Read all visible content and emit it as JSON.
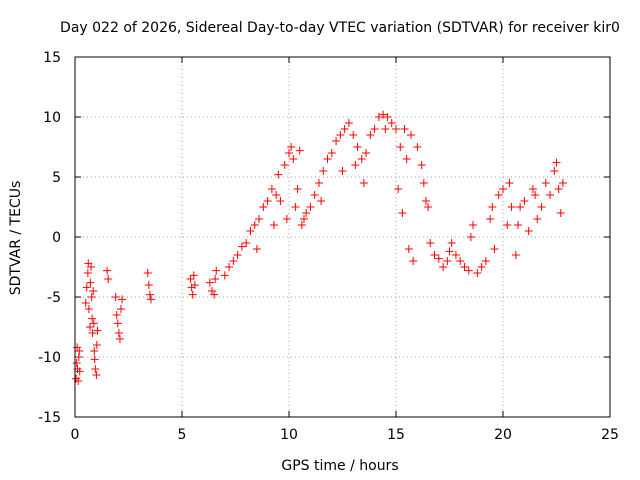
{
  "chart_data": {
    "type": "scatter",
    "title": "Day 022 of 2026, Sidereal Day-to-day VTEC variation (SDTVAR) for receiver kir0",
    "xlabel": "GPS time / hours",
    "ylabel": "SDTVAR / TECUs",
    "xlim": [
      0,
      25
    ],
    "ylim": [
      -15,
      15
    ],
    "xticks": [
      "0",
      "5",
      "10",
      "15",
      "20",
      "25"
    ],
    "yticks": [
      "-15",
      "-10",
      "-5",
      "0",
      "5",
      "10",
      "15"
    ],
    "grid": true,
    "marker": "+",
    "color": "#ff0000",
    "series": [
      {
        "name": "SDTVAR",
        "points": [
          [
            0.05,
            -11.8
          ],
          [
            0.08,
            -10.5
          ],
          [
            0.1,
            -9.2
          ],
          [
            0.12,
            -11.0
          ],
          [
            0.15,
            -12.0
          ],
          [
            0.18,
            -10.0
          ],
          [
            0.2,
            -9.5
          ],
          [
            0.22,
            -11.2
          ],
          [
            0.5,
            -5.5
          ],
          [
            0.55,
            -4.2
          ],
          [
            0.6,
            -3.0
          ],
          [
            0.62,
            -2.2
          ],
          [
            0.65,
            -6.0
          ],
          [
            0.7,
            -7.5
          ],
          [
            0.72,
            -3.8
          ],
          [
            0.75,
            -2.5
          ],
          [
            0.78,
            -5.0
          ],
          [
            0.8,
            -6.8
          ],
          [
            0.82,
            -8.0
          ],
          [
            0.85,
            -4.5
          ],
          [
            0.88,
            -7.2
          ],
          [
            0.9,
            -9.5
          ],
          [
            0.92,
            -10.2
          ],
          [
            0.95,
            -11.0
          ],
          [
            1.0,
            -11.5
          ],
          [
            1.02,
            -9.0
          ],
          [
            1.05,
            -7.8
          ],
          [
            1.5,
            -2.8
          ],
          [
            1.55,
            -3.5
          ],
          [
            1.9,
            -5.0
          ],
          [
            1.95,
            -6.5
          ],
          [
            2.0,
            -7.2
          ],
          [
            2.05,
            -8.0
          ],
          [
            2.1,
            -8.5
          ],
          [
            2.15,
            -6.0
          ],
          [
            2.2,
            -5.2
          ],
          [
            3.4,
            -3.0
          ],
          [
            3.45,
            -4.0
          ],
          [
            3.5,
            -4.8
          ],
          [
            3.55,
            -5.2
          ],
          [
            5.4,
            -3.5
          ],
          [
            5.45,
            -4.2
          ],
          [
            5.5,
            -4.8
          ],
          [
            5.55,
            -3.2
          ],
          [
            5.6,
            -4.0
          ],
          [
            6.3,
            -3.8
          ],
          [
            6.4,
            -4.5
          ],
          [
            6.5,
            -4.8
          ],
          [
            6.55,
            -3.5
          ],
          [
            6.6,
            -2.8
          ],
          [
            7.0,
            -3.2
          ],
          [
            7.2,
            -2.5
          ],
          [
            7.4,
            -2.0
          ],
          [
            7.6,
            -1.5
          ],
          [
            7.8,
            -0.8
          ],
          [
            8.0,
            -0.5
          ],
          [
            8.2,
            0.5
          ],
          [
            8.4,
            1.0
          ],
          [
            8.5,
            -1.0
          ],
          [
            8.6,
            1.5
          ],
          [
            8.8,
            2.5
          ],
          [
            9.0,
            3.0
          ],
          [
            9.2,
            4.0
          ],
          [
            9.3,
            1.0
          ],
          [
            9.4,
            3.5
          ],
          [
            9.5,
            5.2
          ],
          [
            9.6,
            3.0
          ],
          [
            9.8,
            6.0
          ],
          [
            9.9,
            1.5
          ],
          [
            10.0,
            7.0
          ],
          [
            10.1,
            7.5
          ],
          [
            10.2,
            6.5
          ],
          [
            10.3,
            2.5
          ],
          [
            10.4,
            4.0
          ],
          [
            10.5,
            7.2
          ],
          [
            10.6,
            1.0
          ],
          [
            10.7,
            1.5
          ],
          [
            10.8,
            2.0
          ],
          [
            11.0,
            2.5
          ],
          [
            11.2,
            3.5
          ],
          [
            11.4,
            4.5
          ],
          [
            11.5,
            3.0
          ],
          [
            11.6,
            5.5
          ],
          [
            11.8,
            6.5
          ],
          [
            12.0,
            7.0
          ],
          [
            12.2,
            8.0
          ],
          [
            12.4,
            8.5
          ],
          [
            12.5,
            5.5
          ],
          [
            12.6,
            9.0
          ],
          [
            12.8,
            9.5
          ],
          [
            13.0,
            8.5
          ],
          [
            13.1,
            6.0
          ],
          [
            13.2,
            7.5
          ],
          [
            13.4,
            6.5
          ],
          [
            13.5,
            4.5
          ],
          [
            13.6,
            7.0
          ],
          [
            13.8,
            8.5
          ],
          [
            14.0,
            9.0
          ],
          [
            14.2,
            10.0
          ],
          [
            14.4,
            10.2
          ],
          [
            14.5,
            9.0
          ],
          [
            14.6,
            10.0
          ],
          [
            14.8,
            9.5
          ],
          [
            15.0,
            9.0
          ],
          [
            15.1,
            4.0
          ],
          [
            15.2,
            7.5
          ],
          [
            15.3,
            2.0
          ],
          [
            15.4,
            9.0
          ],
          [
            15.5,
            6.5
          ],
          [
            15.6,
            -1.0
          ],
          [
            15.7,
            8.5
          ],
          [
            15.8,
            -2.0
          ],
          [
            16.0,
            7.5
          ],
          [
            16.2,
            6.0
          ],
          [
            16.3,
            4.5
          ],
          [
            16.4,
            3.0
          ],
          [
            16.5,
            2.5
          ],
          [
            16.6,
            -0.5
          ],
          [
            16.8,
            -1.5
          ],
          [
            17.0,
            -1.8
          ],
          [
            17.2,
            -2.5
          ],
          [
            17.4,
            -2.0
          ],
          [
            17.5,
            -1.2
          ],
          [
            17.6,
            -0.5
          ],
          [
            17.8,
            -1.5
          ],
          [
            18.0,
            -2.0
          ],
          [
            18.2,
            -2.5
          ],
          [
            18.4,
            -2.8
          ],
          [
            18.5,
            0.0
          ],
          [
            18.6,
            1.0
          ],
          [
            18.8,
            -3.0
          ],
          [
            19.0,
            -2.5
          ],
          [
            19.2,
            -2.0
          ],
          [
            19.4,
            1.5
          ],
          [
            19.5,
            2.5
          ],
          [
            19.6,
            -1.0
          ],
          [
            19.8,
            3.5
          ],
          [
            20.0,
            4.0
          ],
          [
            20.2,
            1.0
          ],
          [
            20.3,
            4.5
          ],
          [
            20.4,
            2.5
          ],
          [
            20.6,
            -1.5
          ],
          [
            20.7,
            1.0
          ],
          [
            20.8,
            2.5
          ],
          [
            21.0,
            3.0
          ],
          [
            21.2,
            0.5
          ],
          [
            21.4,
            4.0
          ],
          [
            21.5,
            3.5
          ],
          [
            21.6,
            1.5
          ],
          [
            21.8,
            2.5
          ],
          [
            22.0,
            4.5
          ],
          [
            22.2,
            3.5
          ],
          [
            22.4,
            5.5
          ],
          [
            22.5,
            6.2
          ],
          [
            22.6,
            4.0
          ],
          [
            22.7,
            2.0
          ],
          [
            22.8,
            4.5
          ]
        ]
      }
    ]
  }
}
